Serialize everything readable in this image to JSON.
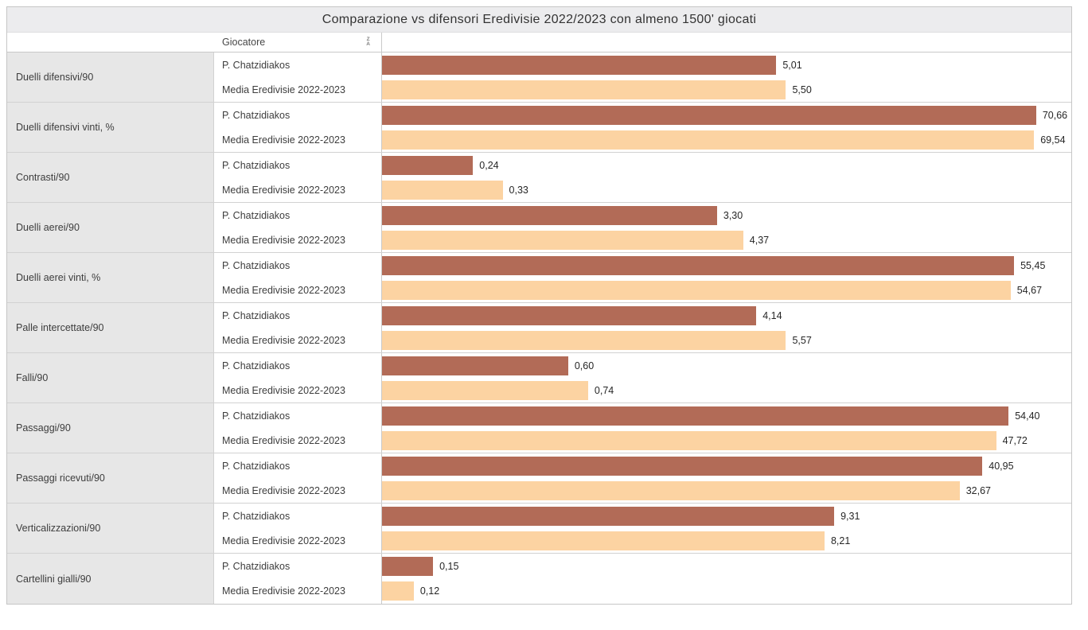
{
  "title": "Comparazione vs difensori Eredivisie 2022/2023 con almeno 1500' giocati",
  "header": {
    "column_label": "Giocatore",
    "sort_icon_top": "Z",
    "sort_icon_bottom": "A"
  },
  "colors": {
    "player_bar": "#b26b57",
    "average_bar": "#fcd3a2",
    "title_bar_bg": "#ececee",
    "category_cell_bg": "#e7e7e7",
    "border": "#c6c6c6"
  },
  "chart_data": {
    "type": "bar",
    "orientation": "horizontal",
    "title": "Comparazione vs difensori Eredivisie 2022/2023 con almeno 1500' giocati",
    "value_format": "italian decimal comma, 2 decimals",
    "legend_position": "none (series named per row in Giocatore column)",
    "grid": false,
    "categories": [
      "Duelli difensivi/90",
      "Duelli difensivi vinti, %",
      "Contrasti/90",
      "Duelli aerei/90",
      "Duelli aerei vinti, %",
      "Palle intercettate/90",
      "Falli/90",
      "Passaggi/90",
      "Passaggi ricevuti/90",
      "Verticalizzazioni/90",
      "Cartellini gialli/90"
    ],
    "series": [
      {
        "name": "P. Chatzidiakos",
        "color": "#b26b57",
        "values": [
          5.01,
          70.66,
          0.24,
          3.3,
          55.45,
          4.14,
          0.6,
          54.4,
          40.95,
          9.31,
          0.15
        ],
        "labels": [
          "5,01",
          "70,66",
          "0,24",
          "3,30",
          "55,45",
          "4,14",
          "0,60",
          "54,40",
          "40,95",
          "9,31",
          "0,15"
        ],
        "bar_pct": [
          57.2,
          94.9,
          13.2,
          48.6,
          91.7,
          54.3,
          27.0,
          90.9,
          87.1,
          65.6,
          7.4
        ]
      },
      {
        "name": "Media Eredivisie 2022-2023",
        "color": "#fcd3a2",
        "values": [
          5.5,
          69.54,
          0.33,
          4.37,
          54.67,
          5.57,
          0.74,
          47.72,
          32.67,
          8.21,
          0.12
        ],
        "labels": [
          "5,50",
          "69,54",
          "0,33",
          "4,37",
          "54,67",
          "5,57",
          "0,74",
          "47,72",
          "32,67",
          "8,21",
          "0,12"
        ],
        "bar_pct": [
          58.6,
          94.6,
          17.5,
          52.4,
          91.2,
          58.6,
          29.9,
          89.1,
          83.8,
          64.2,
          4.6
        ]
      }
    ],
    "bar_length_note": "bar lengths are percentile-style scaled, not proportional to printed values; bar_pct = measured bar length as % of plot-area width"
  }
}
